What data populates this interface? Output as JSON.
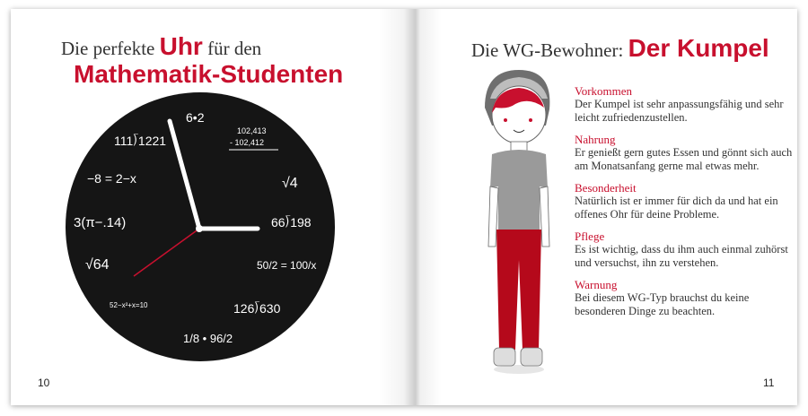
{
  "left_page": {
    "title_line1_pre": "Die perfekte",
    "title_line1_highlight": "Uhr",
    "title_line1_post": "für den",
    "title_line2": "Mathematik-Studenten",
    "clock_labels": [
      "6•2",
      "102,413",
      "- 102,412",
      "√4",
      "66⟌198",
      "50/2 = 100/x",
      "126⟌630",
      "1/8 • 96/2",
      "52−x²+x=10",
      "√64",
      "3(π−.14)",
      "−8 = 2−x",
      "111⟌1221"
    ],
    "page_number": "10"
  },
  "right_page": {
    "title_pre": "Die WG-Bewohner:",
    "title_highlight": "Der Kumpel",
    "sections": [
      {
        "heading": "Vorkommen",
        "text": "Der Kumpel ist sehr anpassungsfähig und sehr leicht zufriedenzustellen."
      },
      {
        "heading": "Nahrung",
        "text": "Er genießt gern gutes Essen und gönnt sich auch am Monatsanfang gerne mal etwas mehr."
      },
      {
        "heading": "Besonderheit",
        "text": "Natürlich ist er immer für dich da und hat ein offenes Ohr für deine Probleme."
      },
      {
        "heading": "Pflege",
        "text": "Es ist wichtig, dass du ihm auch einmal zuhörst und versuchst, ihn zu verstehen."
      },
      {
        "heading": "Warnung",
        "text": "Bei diesem WG-Typ brauchst du keine besonderen Dinge zu beachten."
      }
    ],
    "page_number": "11"
  },
  "colors": {
    "accent": "#c8102e",
    "clock_face": "#151515",
    "shirt": "#9a9a9a",
    "pants": "#b5091b"
  }
}
